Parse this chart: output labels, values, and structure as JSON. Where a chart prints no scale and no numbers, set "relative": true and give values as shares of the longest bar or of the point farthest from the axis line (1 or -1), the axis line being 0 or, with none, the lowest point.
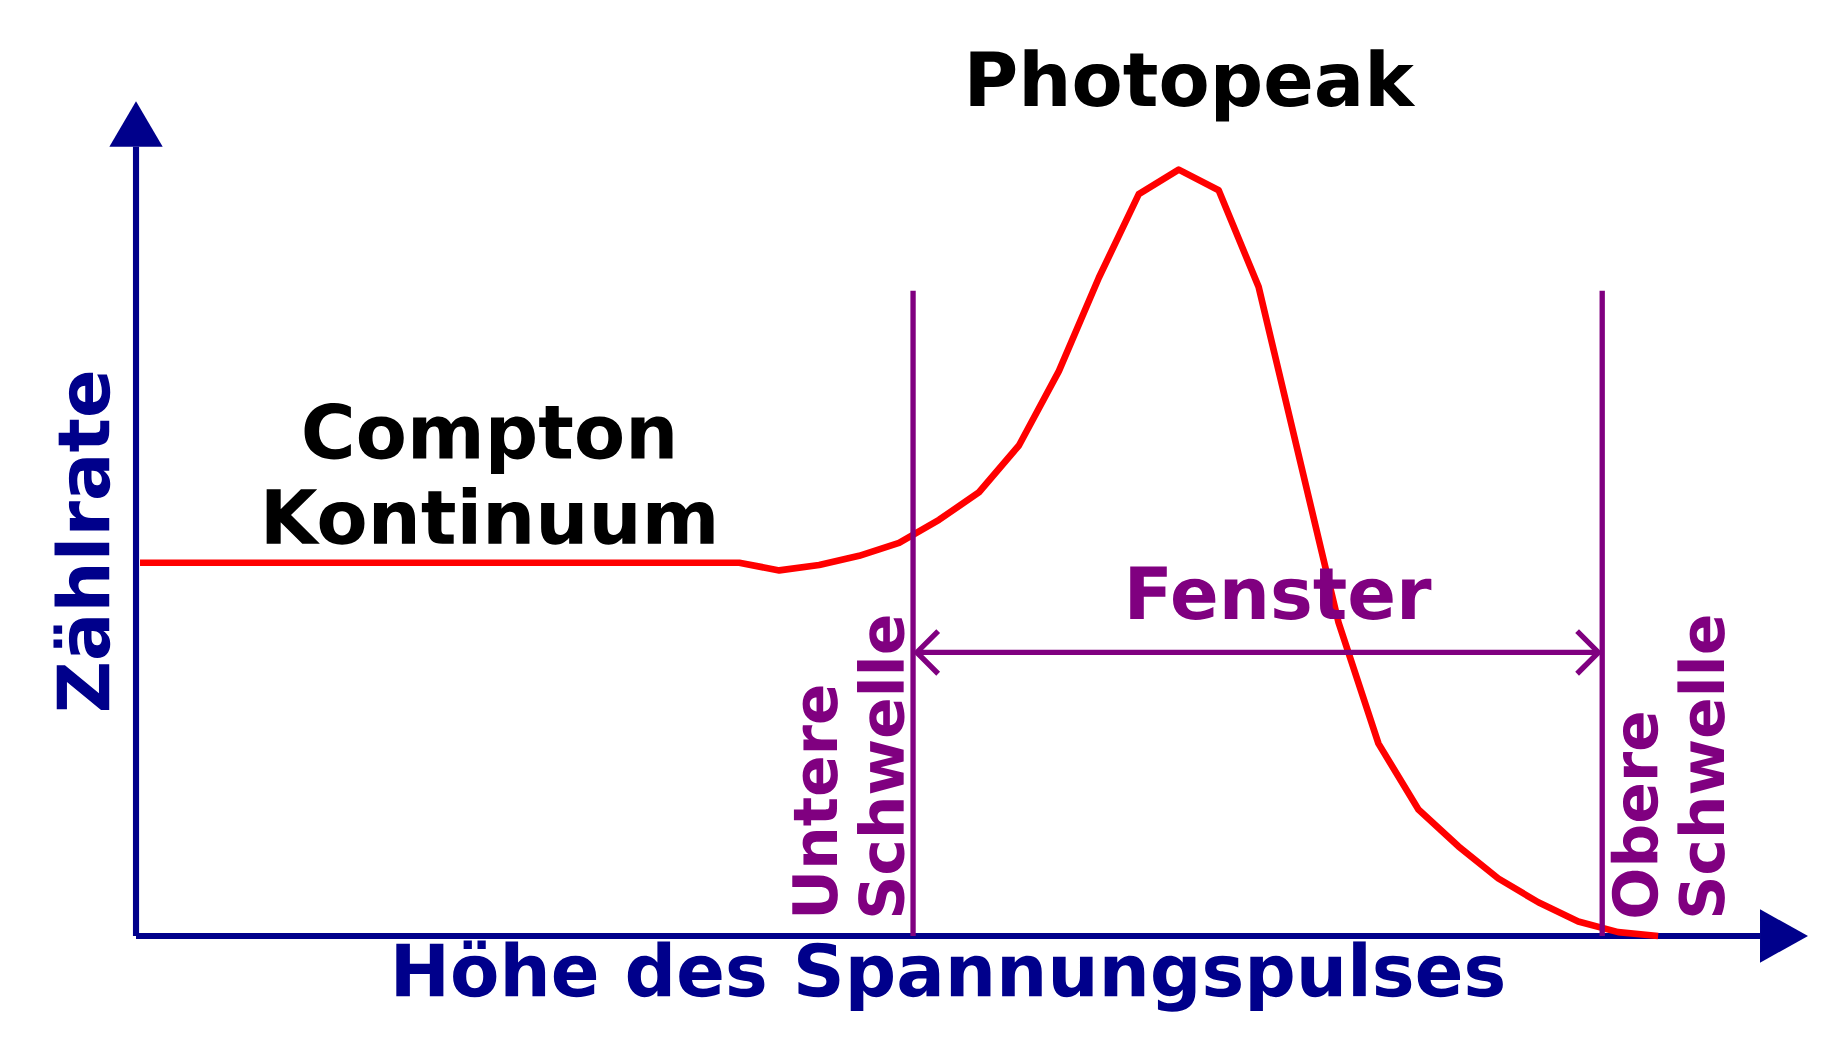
{
  "chart_data": {
    "type": "line",
    "relative": true,
    "xlabel": "Höhe des Spannungspulses",
    "ylabel": "Zählrate",
    "color": "#ff0000",
    "categories": [
      null,
      null,
      null,
      null,
      null,
      null,
      null,
      null,
      null,
      null,
      null,
      null,
      null,
      null,
      null,
      null,
      null,
      null,
      null,
      null,
      null,
      null,
      null,
      null,
      null,
      null,
      null,
      null,
      null,
      null,
      null,
      null,
      null,
      null,
      null,
      null,
      null,
      null,
      null
    ],
    "values": [
      0.487,
      0.487,
      0.487,
      0.487,
      0.487,
      0.487,
      0.487,
      0.487,
      0.487,
      0.487,
      0.487,
      0.487,
      0.487,
      0.487,
      0.487,
      0.487,
      0.477,
      0.484,
      0.496,
      0.513,
      0.543,
      0.579,
      0.64,
      0.737,
      0.859,
      0.968,
      1,
      0.973,
      0.847,
      0.628,
      0.409,
      0.251,
      0.165,
      0.117,
      0.075,
      0.044,
      0.019,
      0.005,
      0
    ],
    "annotations": [
      "Compton Kontinuum",
      "Photopeak",
      "Untere Schwelle",
      "Fenster",
      "Obere Schwelle"
    ],
    "marker": "none",
    "line_style": "solid"
  }
}
